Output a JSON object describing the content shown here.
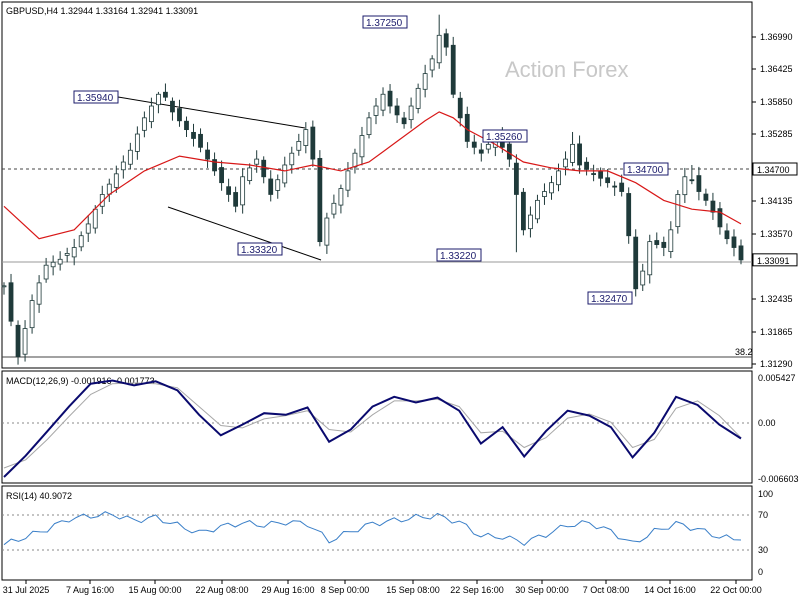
{
  "header": {
    "title": "GBPUSD,H4  1.32944 1.33164 1.32941 1.33091",
    "watermark": "Action Forex"
  },
  "colors": {
    "candle": "#1f3a3a",
    "ma": "#d81818",
    "macd": "#0a0a6e",
    "signal": "#a8a8a8",
    "rsi": "#3a7fc8",
    "label_border": "#1b1b6b"
  },
  "chart_data": [
    {
      "type": "candlestick",
      "symbol": "GBPUSD",
      "timeframe": "H4",
      "ohlc_readout": {
        "open": 1.32944,
        "high": 1.33164,
        "low": 1.32941,
        "close": 1.33091
      },
      "ylim": [
        1.3129,
        1.3725
      ],
      "y_ticks": [
        "1.36990",
        "1.36425",
        "1.35850",
        "1.35285",
        "1.34700",
        "1.34135",
        "1.33570",
        "1.33005",
        "1.32435",
        "1.31865",
        "1.31290"
      ],
      "x_tick_labels": [
        "31 Jul 2025",
        "7 Aug 16:00",
        "15 Aug 00:00",
        "22 Aug 08:00",
        "29 Aug 16:00",
        "8 Sep 00:00",
        "15 Sep 08:00",
        "22 Sep 16:00",
        "30 Sep 00:00",
        "7 Oct 08:00",
        "14 Oct 16:00",
        "22 Oct 00:00"
      ],
      "close_path": [
        [
          0,
          1.3265
        ],
        [
          2,
          1.3145
        ],
        [
          4,
          1.324
        ],
        [
          6,
          1.33
        ],
        [
          8,
          1.331
        ],
        [
          10,
          1.333
        ],
        [
          12,
          1.337
        ],
        [
          14,
          1.342
        ],
        [
          16,
          1.3455
        ],
        [
          18,
          1.3495
        ],
        [
          20,
          1.355
        ],
        [
          22,
          1.359
        ],
        [
          23,
          1.3585
        ],
        [
          24,
          1.356
        ],
        [
          26,
          1.353
        ],
        [
          28,
          1.35
        ],
        [
          30,
          1.346
        ],
        [
          32,
          1.342
        ],
        [
          33,
          1.34
        ],
        [
          34,
          1.345
        ],
        [
          36,
          1.348
        ],
        [
          38,
          1.342
        ],
        [
          40,
          1.347
        ],
        [
          42,
          1.351
        ],
        [
          43,
          1.353
        ],
        [
          44,
          1.348
        ],
        [
          45,
          1.334
        ],
        [
          46,
          1.338
        ],
        [
          48,
          1.343
        ],
        [
          50,
          1.349
        ],
        [
          52,
          1.355
        ],
        [
          54,
          1.359
        ],
        [
          55,
          1.357
        ],
        [
          57,
          1.354
        ],
        [
          59,
          1.36
        ],
        [
          61,
          1.365
        ],
        [
          62,
          1.369
        ],
        [
          63,
          1.367
        ],
        [
          64,
          1.359
        ],
        [
          66,
          1.351
        ],
        [
          68,
          1.349
        ],
        [
          70,
          1.352
        ],
        [
          72,
          1.348
        ],
        [
          73,
          1.342
        ],
        [
          74,
          1.336
        ],
        [
          76,
          1.341
        ],
        [
          78,
          1.344
        ],
        [
          80,
          1.348
        ],
        [
          81,
          1.3505
        ],
        [
          82,
          1.347
        ],
        [
          84,
          1.3455
        ],
        [
          86,
          1.344
        ],
        [
          88,
          1.3425
        ],
        [
          89,
          1.335
        ],
        [
          90,
          1.326
        ],
        [
          91,
          1.329
        ],
        [
          92,
          1.334
        ],
        [
          94,
          1.333
        ],
        [
          95,
          1.336
        ],
        [
          96,
          1.342
        ],
        [
          97,
          1.345
        ],
        [
          98,
          1.3445
        ],
        [
          99,
          1.3425
        ],
        [
          100,
          1.341
        ],
        [
          101,
          1.339
        ],
        [
          102,
          1.3365
        ],
        [
          103,
          1.3345
        ],
        [
          104,
          1.333
        ],
        [
          105,
          1.3309
        ]
      ],
      "moving_average": [
        [
          0,
          1.34
        ],
        [
          5,
          1.3345
        ],
        [
          10,
          1.336
        ],
        [
          15,
          1.342
        ],
        [
          20,
          1.346
        ],
        [
          25,
          1.3485
        ],
        [
          30,
          1.3475
        ],
        [
          35,
          1.347
        ],
        [
          40,
          1.346
        ],
        [
          44,
          1.347
        ],
        [
          48,
          1.346
        ],
        [
          52,
          1.3475
        ],
        [
          56,
          1.351
        ],
        [
          60,
          1.3545
        ],
        [
          62,
          1.356
        ],
        [
          64,
          1.355
        ],
        [
          66,
          1.353
        ],
        [
          70,
          1.3505
        ],
        [
          74,
          1.3475
        ],
        [
          78,
          1.3465
        ],
        [
          82,
          1.346
        ],
        [
          86,
          1.346
        ],
        [
          90,
          1.344
        ],
        [
          94,
          1.341
        ],
        [
          98,
          1.3395
        ],
        [
          102,
          1.339
        ],
        [
          105,
          1.337
        ]
      ],
      "annotations": [
        {
          "label": "1.35940",
          "value": 1.3594
        },
        {
          "label": "1.37250",
          "value": 1.3725
        },
        {
          "label": "1.35260",
          "value": 1.3526
        },
        {
          "label": "1.34700",
          "value": 1.347
        },
        {
          "label": "1.33320",
          "value": 1.3332
        },
        {
          "label": "1.33220",
          "value": 1.3322
        },
        {
          "label": "1.32470",
          "value": 1.3247
        },
        {
          "label": "1.33091",
          "value": 1.33091
        }
      ],
      "fib_label": "38.2"
    },
    {
      "type": "line",
      "title": "MACD(12,26,9) -0.001916 -0.001773",
      "y_ticks": [
        "0.005427",
        "0.00",
        "-0.006603"
      ],
      "series": [
        {
          "name": "MACD",
          "values": [
            -0.0066,
            -0.004,
            -0.001,
            0.002,
            0.0048,
            0.0052,
            0.0046,
            0.0051,
            0.004,
            0.001,
            -0.0015,
            -0.0002,
            0.0012,
            0.001,
            0.0019,
            -0.0023,
            -0.0008,
            0.002,
            0.0032,
            0.0025,
            0.0031,
            0.0015,
            -0.0025,
            -0.0005,
            -0.0041,
            -0.001,
            0.0015,
            0.0009,
            -0.0005,
            -0.0042,
            -0.0012,
            0.0032,
            0.0022,
            -0.0002,
            -0.0019
          ]
        },
        {
          "name": "Signal",
          "values": [
            -0.0055,
            -0.0045,
            -0.002,
            0.0008,
            0.0035,
            0.0048,
            0.0049,
            0.0048,
            0.0043,
            0.002,
            -0.0003,
            -0.0006,
            0.0005,
            0.0009,
            0.0015,
            -0.0008,
            -0.0011,
            0.001,
            0.0027,
            0.0027,
            0.0029,
            0.002,
            -0.0012,
            -0.001,
            -0.003,
            -0.0018,
            0.0006,
            0.0011,
            0.0001,
            -0.003,
            -0.002,
            0.0018,
            0.0027,
            0.0009,
            -0.0018
          ]
        }
      ]
    },
    {
      "type": "line",
      "title": "RSI(14) 40.9072",
      "y_ticks": [
        "100",
        "70",
        "30",
        "0"
      ],
      "ylim": [
        0,
        100
      ],
      "levels": [
        70,
        30
      ],
      "series": [
        {
          "name": "RSI",
          "values": [
            35,
            45,
            55,
            68,
            72,
            74,
            66,
            70,
            60,
            50,
            58,
            63,
            60,
            64,
            62,
            40,
            52,
            62,
            66,
            70,
            72,
            64,
            46,
            45,
            38,
            48,
            60,
            63,
            52,
            36,
            52,
            62,
            55,
            45,
            41
          ]
        }
      ]
    }
  ]
}
